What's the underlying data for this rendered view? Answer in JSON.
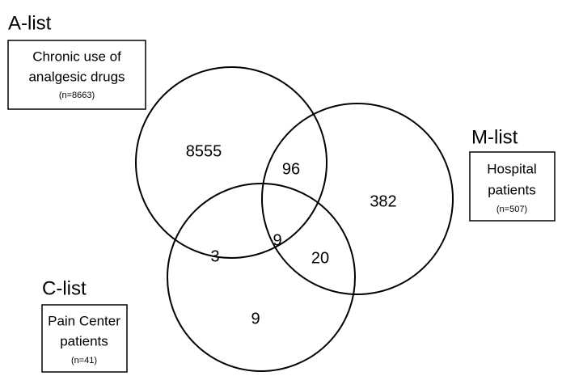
{
  "lists": [
    {
      "name": "A-list",
      "lines": [
        "Chronic use of",
        "analgesic drugs"
      ],
      "count": "(n=8663)"
    },
    {
      "name": "M-list",
      "lines": [
        "Hospital",
        "patients"
      ],
      "count": "(n=507)"
    },
    {
      "name": "C-list",
      "lines": [
        "Pain Center",
        "patients"
      ],
      "count": "(n=41)"
    }
  ],
  "regions": [
    8555,
    96,
    382,
    3,
    9,
    20,
    9
  ]
}
